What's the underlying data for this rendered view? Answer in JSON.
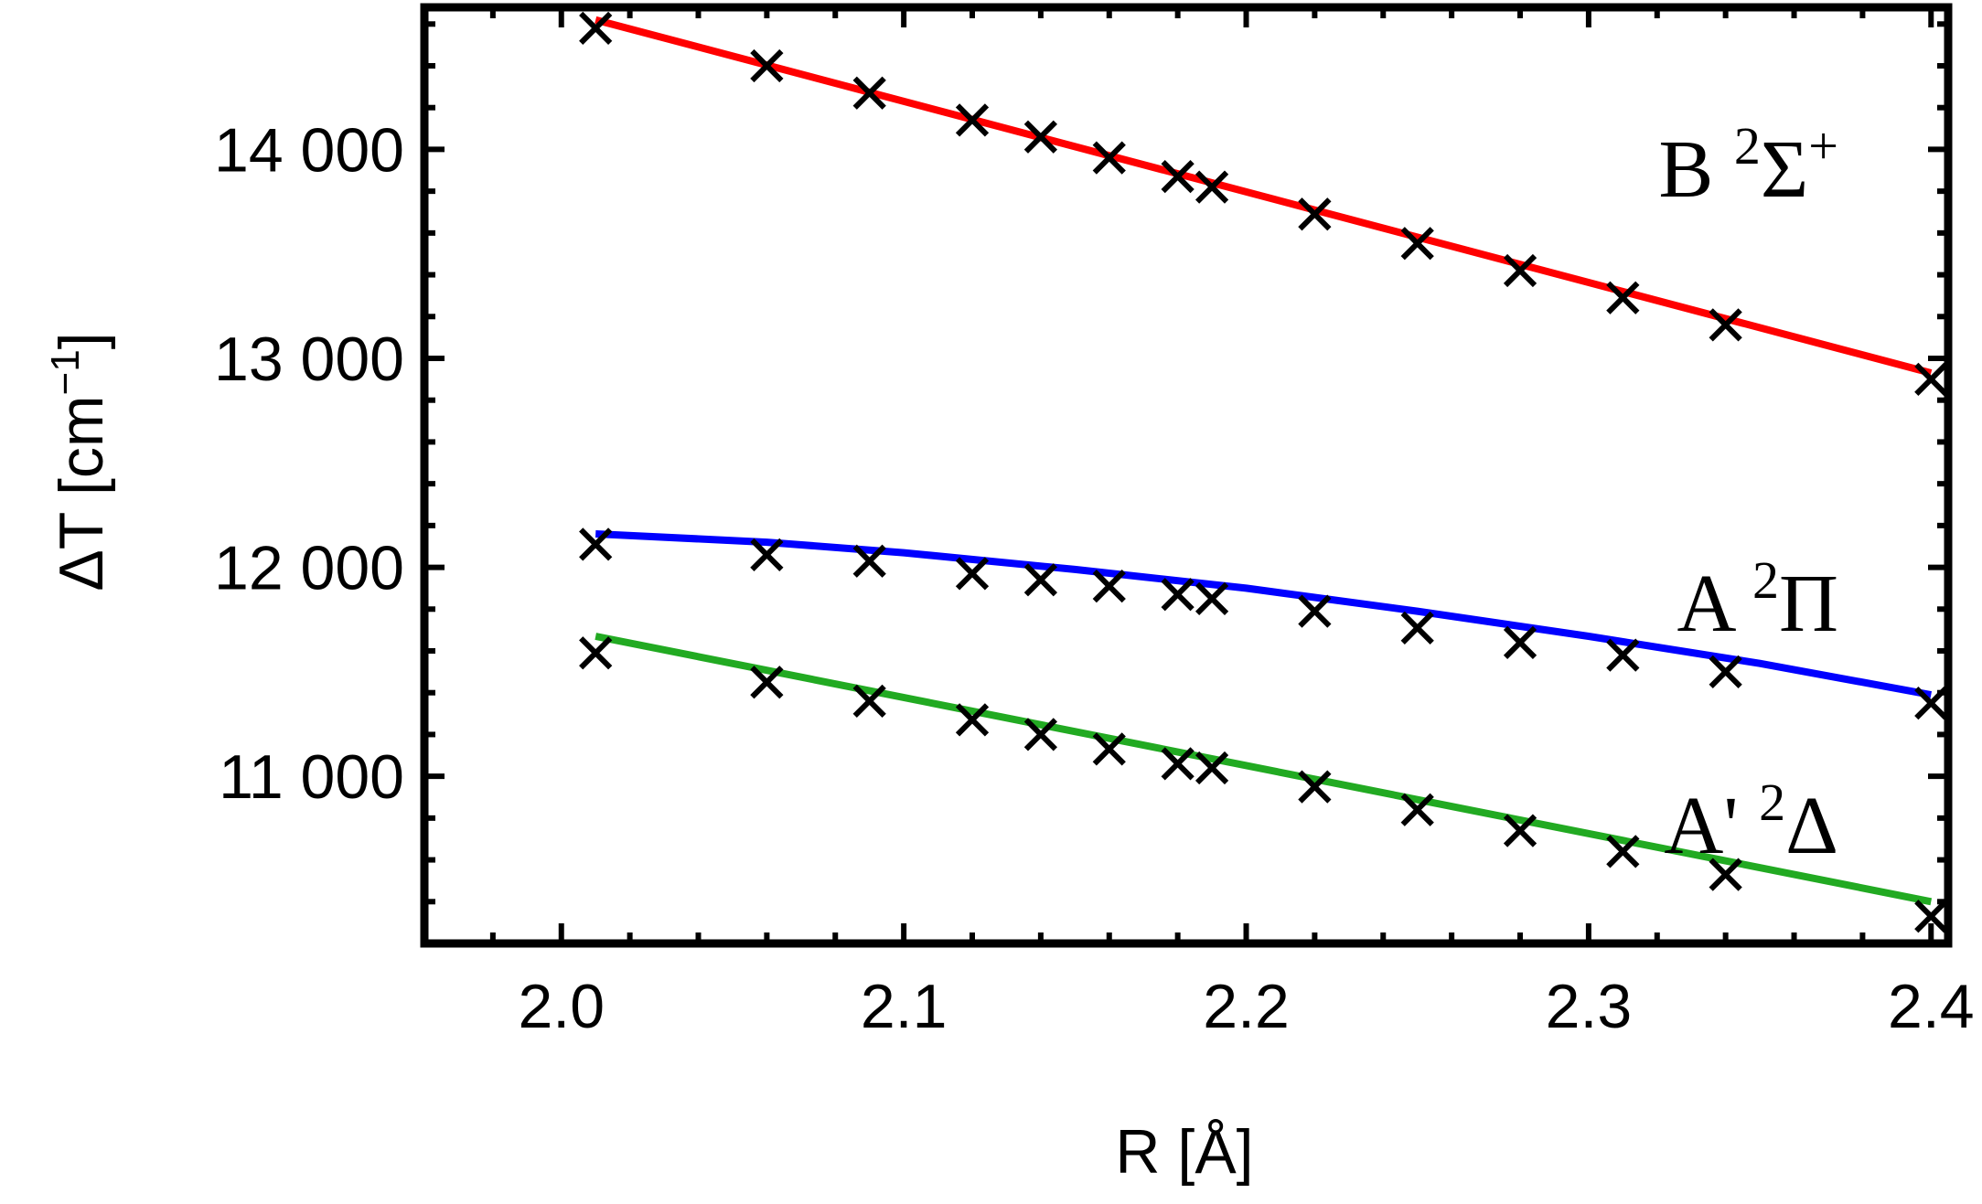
{
  "chart_data": {
    "type": "line",
    "title": "",
    "xlabel": "R [Å]",
    "ylabel_parts": {
      "main": "ΔT [cm",
      "sup": "−1",
      "end": "]"
    },
    "xlim": [
      1.96,
      2.405
    ],
    "ylim": [
      10200,
      14680
    ],
    "x_ticks": [
      2.0,
      2.1,
      2.2,
      2.3,
      2.4
    ],
    "x_tick_labels": [
      "2.0",
      "2.1",
      "2.2",
      "2.3",
      "2.4"
    ],
    "y_ticks": [
      11000,
      12000,
      13000,
      14000
    ],
    "y_tick_labels": [
      "11 000",
      "12 000",
      "13 000",
      "14 000"
    ],
    "grid": false,
    "legend": "none",
    "series": [
      {
        "label_parts": {
          "base": "B ",
          "sup1": "2",
          "main": "Σ",
          "sup2": "+"
        },
        "color": "#ff0000",
        "fit": [
          [
            2.01,
            14620
          ],
          [
            2.4,
            12930
          ]
        ],
        "points": [
          [
            2.01,
            14580
          ],
          [
            2.06,
            14400
          ],
          [
            2.09,
            14270
          ],
          [
            2.12,
            14140
          ],
          [
            2.14,
            14060
          ],
          [
            2.16,
            13960
          ],
          [
            2.18,
            13870
          ],
          [
            2.19,
            13820
          ],
          [
            2.22,
            13690
          ],
          [
            2.25,
            13550
          ],
          [
            2.28,
            13420
          ],
          [
            2.31,
            13290
          ],
          [
            2.34,
            13160
          ],
          [
            2.4,
            12900
          ]
        ]
      },
      {
        "label_parts": {
          "base": "A ",
          "sup1": "2",
          "main": "Π",
          "sup2": ""
        },
        "color": "#0000ff",
        "fit": [
          [
            2.01,
            12160
          ],
          [
            2.06,
            12120
          ],
          [
            2.1,
            12070
          ],
          [
            2.15,
            11990
          ],
          [
            2.2,
            11900
          ],
          [
            2.25,
            11790
          ],
          [
            2.3,
            11670
          ],
          [
            2.35,
            11540
          ],
          [
            2.4,
            11390
          ]
        ],
        "points": [
          [
            2.01,
            12110
          ],
          [
            2.06,
            12060
          ],
          [
            2.09,
            12030
          ],
          [
            2.12,
            11970
          ],
          [
            2.14,
            11940
          ],
          [
            2.16,
            11910
          ],
          [
            2.18,
            11870
          ],
          [
            2.19,
            11850
          ],
          [
            2.22,
            11790
          ],
          [
            2.25,
            11710
          ],
          [
            2.28,
            11640
          ],
          [
            2.31,
            11580
          ],
          [
            2.34,
            11500
          ],
          [
            2.4,
            11350
          ]
        ]
      },
      {
        "label_parts": {
          "base": "A' ",
          "sup1": "2",
          "main": "Δ",
          "sup2": ""
        },
        "color": "#22aa22",
        "fit": [
          [
            2.01,
            11670
          ],
          [
            2.4,
            10400
          ]
        ],
        "points": [
          [
            2.01,
            11590
          ],
          [
            2.06,
            11450
          ],
          [
            2.09,
            11360
          ],
          [
            2.12,
            11270
          ],
          [
            2.14,
            11200
          ],
          [
            2.16,
            11130
          ],
          [
            2.18,
            11060
          ],
          [
            2.19,
            11040
          ],
          [
            2.22,
            10950
          ],
          [
            2.25,
            10840
          ],
          [
            2.28,
            10740
          ],
          [
            2.31,
            10640
          ],
          [
            2.34,
            10530
          ],
          [
            2.4,
            10330
          ]
        ]
      }
    ]
  }
}
